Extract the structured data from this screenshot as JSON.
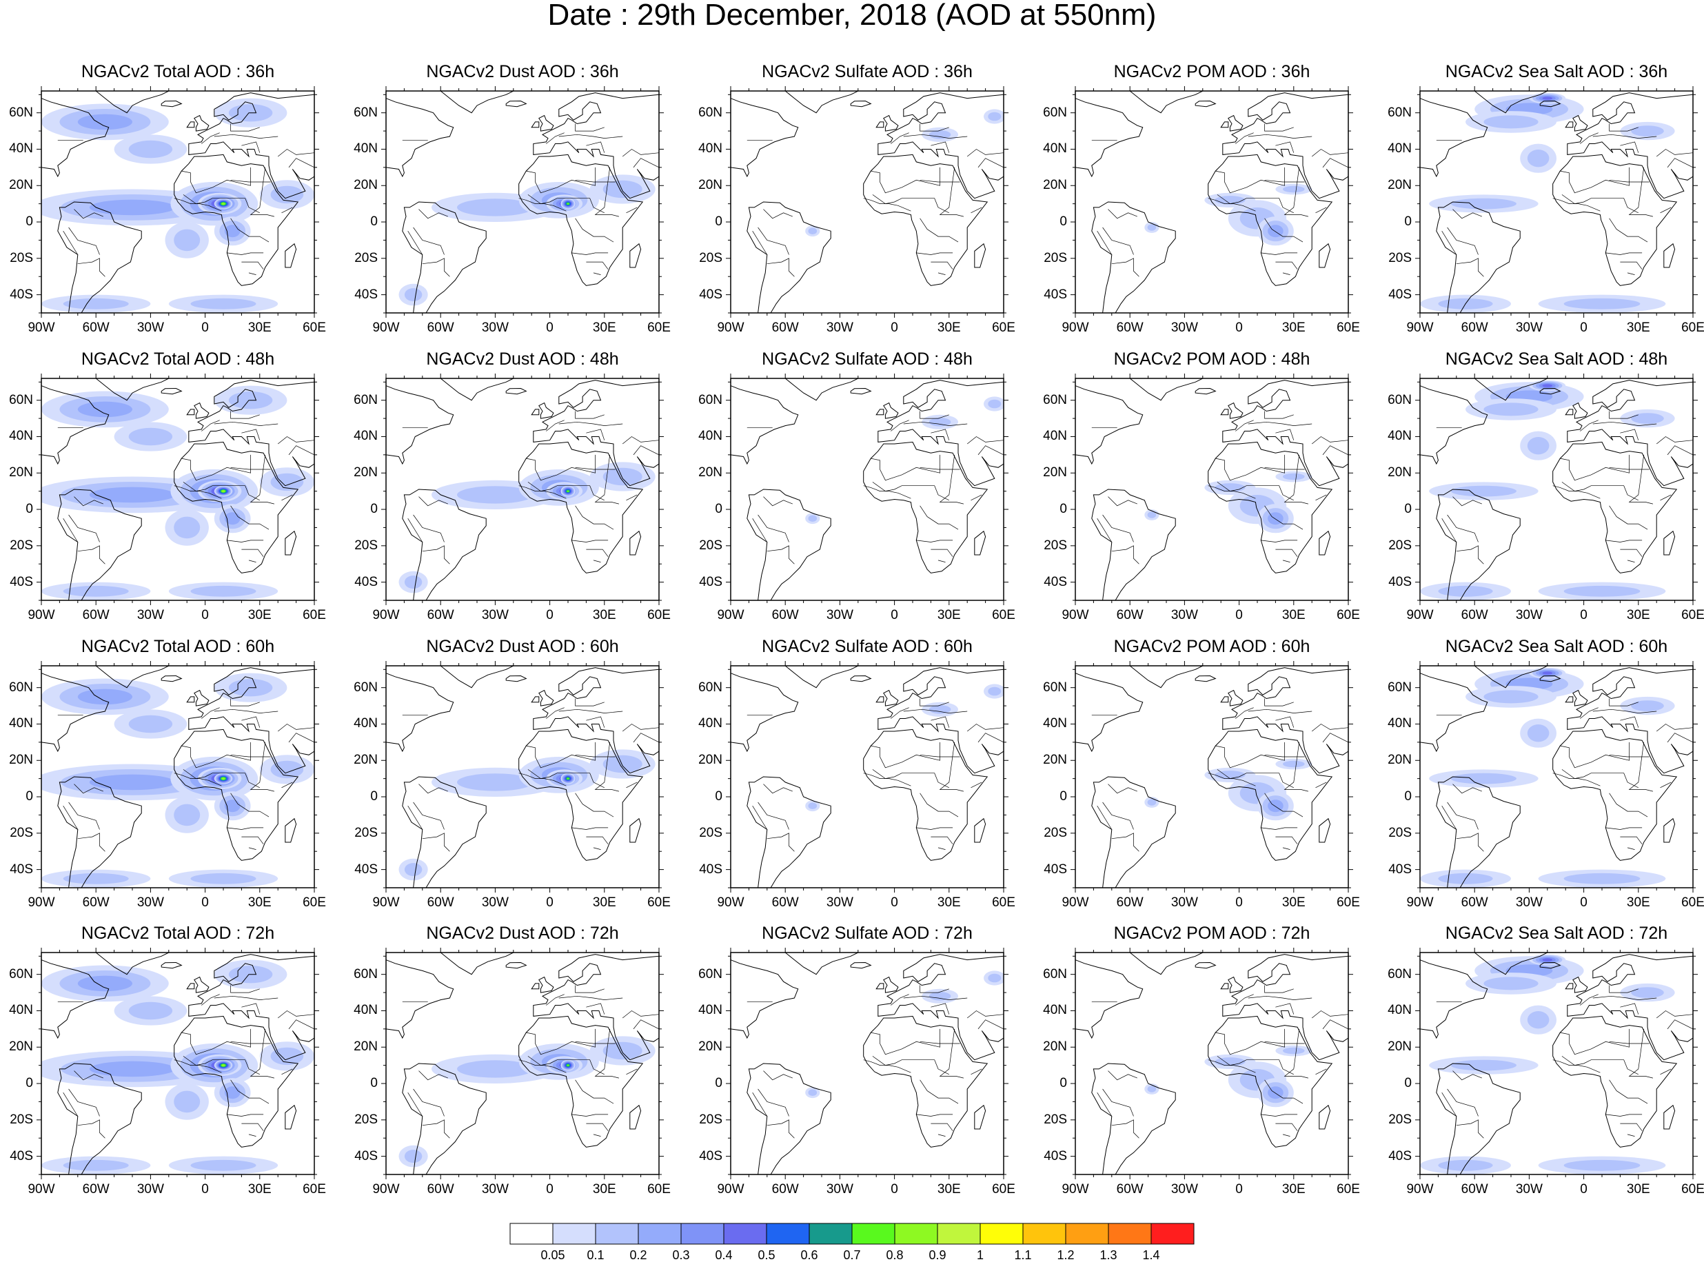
{
  "page_title": "Date : 29th December, 2018 (AOD at 550nm)",
  "colors": {
    "land_outline": "#000000",
    "colorbar": [
      "#ffffff",
      "#d5defd",
      "#b2c3fc",
      "#94abfb",
      "#7f93f7",
      "#6a6cf0",
      "#1f65f2",
      "#179a8c",
      "#59f91e",
      "#8ef922",
      "#c0f63c",
      "#fffe07",
      "#ffc40c",
      "#ff9f12",
      "#ff7716",
      "#ff1e1e"
    ]
  },
  "axes": {
    "lat_labels": [
      "60N",
      "40N",
      "20N",
      "0",
      "20S",
      "40S"
    ],
    "lon_labels": [
      "90W",
      "60W",
      "30W",
      "0",
      "30E",
      "60E"
    ]
  },
  "colorbar": {
    "labels": [
      "0.05",
      "0.1",
      "0.2",
      "0.3",
      "0.4",
      "0.5",
      "0.6",
      "0.7",
      "0.8",
      "0.9",
      "1",
      "1.1",
      "1.2",
      "1.3",
      "1.4"
    ]
  },
  "rows": [
    {
      "panels": [
        {
          "title": "NGACv2 Total AOD : 36h",
          "field": "total",
          "forecast_hour": 36
        },
        {
          "title": "NGACv2 Dust AOD : 36h",
          "field": "dust",
          "forecast_hour": 36
        },
        {
          "title": "NGACv2 Sulfate AOD : 36h",
          "field": "sulfate",
          "forecast_hour": 36
        },
        {
          "title": "NGACv2 POM AOD : 36h",
          "field": "pom",
          "forecast_hour": 36
        },
        {
          "title": "NGACv2 Sea Salt AOD : 36h",
          "field": "seasalt",
          "forecast_hour": 36
        }
      ]
    },
    {
      "panels": [
        {
          "title": "NGACv2 Total AOD : 48h",
          "field": "total",
          "forecast_hour": 48
        },
        {
          "title": "NGACv2 Dust AOD : 48h",
          "field": "dust",
          "forecast_hour": 48
        },
        {
          "title": "NGACv2 Sulfate AOD : 48h",
          "field": "sulfate",
          "forecast_hour": 48
        },
        {
          "title": "NGACv2 POM AOD : 48h",
          "field": "pom",
          "forecast_hour": 48
        },
        {
          "title": "NGACv2 Sea Salt AOD : 48h",
          "field": "seasalt",
          "forecast_hour": 48
        }
      ]
    },
    {
      "panels": [
        {
          "title": "NGACv2 Total AOD : 60h",
          "field": "total",
          "forecast_hour": 60
        },
        {
          "title": "NGACv2 Dust AOD : 60h",
          "field": "dust",
          "forecast_hour": 60
        },
        {
          "title": "NGACv2 Sulfate AOD : 60h",
          "field": "sulfate",
          "forecast_hour": 60
        },
        {
          "title": "NGACv2 POM AOD : 60h",
          "field": "pom",
          "forecast_hour": 60
        },
        {
          "title": "NGACv2 Sea Salt AOD : 60h",
          "field": "seasalt",
          "forecast_hour": 60
        }
      ]
    },
    {
      "panels": [
        {
          "title": "NGACv2 Total AOD : 72h",
          "field": "total",
          "forecast_hour": 72
        },
        {
          "title": "NGACv2 Dust AOD : 72h",
          "field": "dust",
          "forecast_hour": 72
        },
        {
          "title": "NGACv2 Sulfate AOD : 72h",
          "field": "sulfate",
          "forecast_hour": 72
        },
        {
          "title": "NGACv2 POM AOD : 72h",
          "field": "pom",
          "forecast_hour": 72
        },
        {
          "title": "NGACv2 Sea Salt  AOD : 72h",
          "field": "seasalt",
          "forecast_hour": 72
        }
      ]
    }
  ]
}
